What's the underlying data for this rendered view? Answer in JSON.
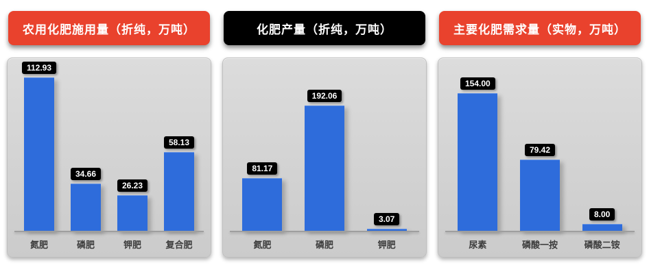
{
  "chart_data": [
    {
      "type": "bar",
      "title": "农用化肥施用量（折纯，万吨）",
      "header_color": "#e9422d",
      "header_text_color": "#ffffff",
      "categories": [
        "氮肥",
        "磷肥",
        "钾肥",
        "复合肥"
      ],
      "values": [
        112.93,
        34.66,
        26.23,
        58.13
      ],
      "value_labels": [
        "112.93",
        "34.66",
        "26.23",
        "58.13"
      ],
      "ylim": [
        0,
        125
      ],
      "legend": "none",
      "grid": false
    },
    {
      "type": "bar",
      "title": "化肥产量（折纯，万吨）",
      "header_color": "#000000",
      "header_text_color": "#ffffff",
      "categories": [
        "氮肥",
        "磷肥",
        "钾肥"
      ],
      "values": [
        81.17,
        192.06,
        3.07
      ],
      "value_labels": [
        "81.17",
        "192.06",
        "3.07"
      ],
      "ylim": [
        0,
        260
      ],
      "legend": "none",
      "grid": false
    },
    {
      "type": "bar",
      "title": "主要化肥需求量（实物，万吨）",
      "header_color": "#e9422d",
      "header_text_color": "#ffffff",
      "categories": [
        "尿素",
        "磷酸一按",
        "磷酸二铵"
      ],
      "values": [
        154.0,
        79.42,
        8.0
      ],
      "value_labels": [
        "154.00",
        "79.42",
        "8.00"
      ],
      "ylim": [
        0,
        190
      ],
      "legend": "none",
      "grid": false
    }
  ],
  "colors": {
    "bar": "#2e6cdb",
    "panel_bg_top": "#dcdcdc",
    "panel_bg_bottom": "#cbcbcb",
    "value_label_bg": "#000000",
    "value_label_text": "#ffffff",
    "category_text": "#3c3c3c",
    "axis_line": "#9e9e9e"
  }
}
